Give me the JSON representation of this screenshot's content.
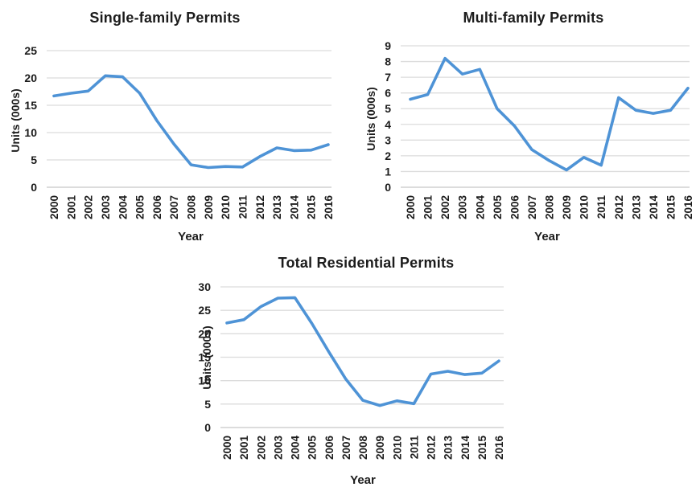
{
  "page": {
    "background": "#ffffff"
  },
  "styles": {
    "line_color": "#4e93d6",
    "grid_color": "#dcdcdc",
    "axis_color": "#c8c8c8",
    "text_color": "#1c1c1c"
  },
  "chart_data": [
    {
      "id": "single-family",
      "type": "line",
      "title": "Single-family Permits",
      "xlabel": "Year",
      "ylabel": "Units (000s)",
      "x": [
        2000,
        2001,
        2002,
        2003,
        2004,
        2005,
        2006,
        2007,
        2008,
        2009,
        2010,
        2011,
        2012,
        2013,
        2014,
        2015,
        2016
      ],
      "values": [
        16.7,
        17.2,
        17.6,
        20.4,
        20.2,
        17.2,
        12.2,
        7.9,
        4.1,
        3.6,
        3.8,
        3.7,
        5.6,
        7.2,
        6.7,
        6.8,
        7.8
      ],
      "ylim": [
        0,
        25
      ],
      "ytick_step": 5,
      "grid": true,
      "legend": "none"
    },
    {
      "id": "multi-family",
      "type": "line",
      "title": "Multi-family Permits",
      "xlabel": "Year",
      "ylabel": "Units (000s)",
      "x": [
        2000,
        2001,
        2002,
        2003,
        2004,
        2005,
        2006,
        2007,
        2008,
        2009,
        2010,
        2011,
        2012,
        2013,
        2014,
        2015,
        2016
      ],
      "values": [
        5.6,
        5.9,
        8.2,
        7.2,
        7.5,
        5.0,
        3.9,
        2.4,
        1.7,
        1.1,
        1.9,
        1.4,
        5.7,
        4.9,
        4.7,
        4.9,
        6.3
      ],
      "ylim": [
        0,
        9
      ],
      "ytick_step": 1,
      "grid": true,
      "legend": "none"
    },
    {
      "id": "total-residential",
      "type": "line",
      "title": "Total Residential Permits",
      "xlabel": "Year",
      "ylabel": "Units (000s)",
      "x": [
        2000,
        2001,
        2002,
        2003,
        2004,
        2005,
        2006,
        2007,
        2008,
        2009,
        2010,
        2011,
        2012,
        2013,
        2014,
        2015,
        2016
      ],
      "values": [
        22.3,
        23.0,
        25.8,
        27.6,
        27.7,
        22.2,
        16.1,
        10.3,
        5.8,
        4.7,
        5.7,
        5.1,
        11.4,
        12.0,
        11.3,
        11.6,
        14.2
      ],
      "ylim": [
        0,
        30
      ],
      "ytick_step": 5,
      "grid": true,
      "legend": "none"
    }
  ]
}
